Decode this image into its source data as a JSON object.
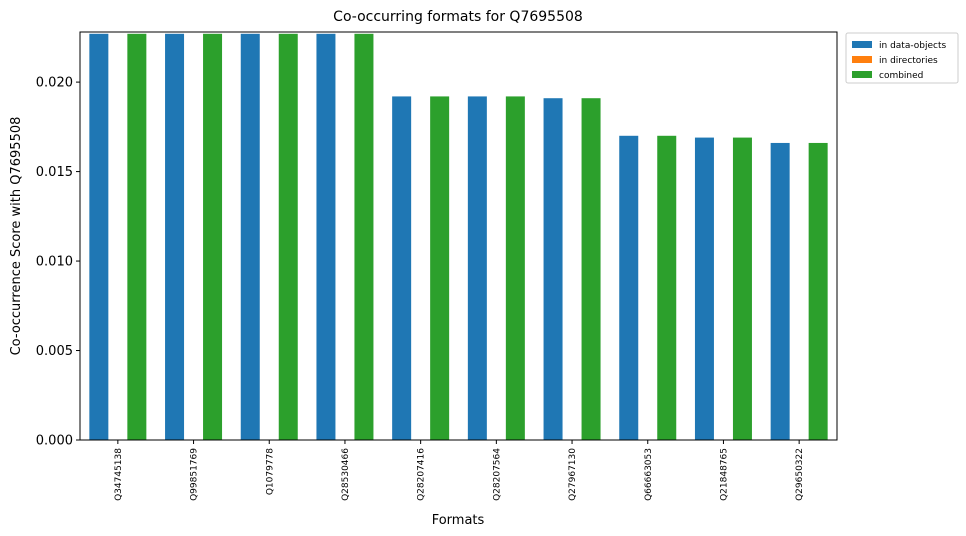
{
  "chart_data": {
    "type": "bar",
    "title": "Co-occurring formats for Q7695508",
    "xlabel": "Formats",
    "ylabel": "Co-occurrence Score with Q7695508",
    "ylim": [
      0,
      0.0228
    ],
    "yticks": [
      "0.000",
      "0.005",
      "0.010",
      "0.015",
      "0.020"
    ],
    "categories": [
      "Q34745138",
      "Q99851769",
      "Q1079778",
      "Q28530466",
      "Q28207416",
      "Q28207564",
      "Q27967130",
      "Q66663053",
      "Q21848765",
      "Q29650322"
    ],
    "series": [
      {
        "name": "in data-objects",
        "color": "#1f77b4",
        "values": [
          0.0227,
          0.0227,
          0.0227,
          0.0227,
          0.0192,
          0.0192,
          0.0191,
          0.017,
          0.0169,
          0.0166
        ]
      },
      {
        "name": "in directories",
        "color": "#ff7f0e",
        "values": [
          0,
          0,
          0,
          0,
          0,
          0,
          0,
          0,
          0,
          0
        ]
      },
      {
        "name": "combined",
        "color": "#2ca02c",
        "values": [
          0.0227,
          0.0227,
          0.0227,
          0.0227,
          0.0192,
          0.0192,
          0.0191,
          0.017,
          0.0169,
          0.0166
        ]
      }
    ],
    "legend": "outside-top-right",
    "grid": false
  }
}
